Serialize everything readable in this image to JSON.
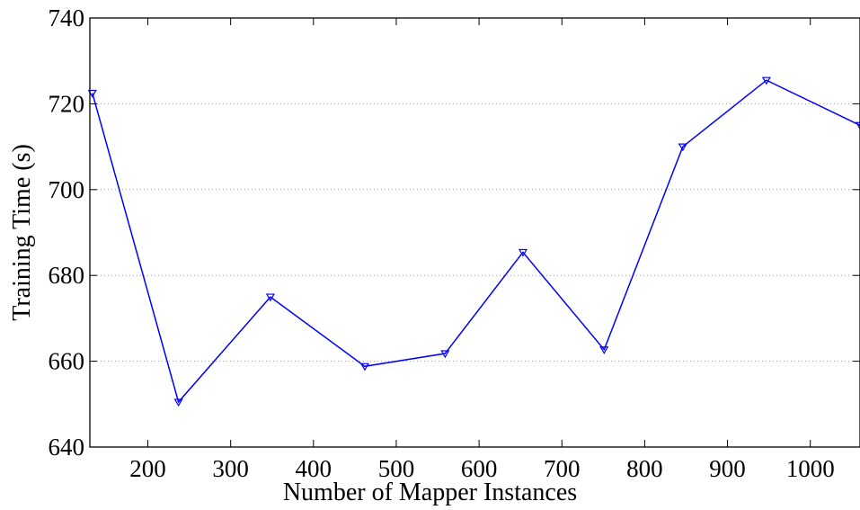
{
  "chart_data": {
    "type": "line",
    "title": "",
    "xlabel": "Number of Mapper Instances",
    "ylabel": "Training Time (s)",
    "xlim": [
      130,
      1060
    ],
    "ylim": [
      640,
      740
    ],
    "x_ticks": [
      200,
      300,
      400,
      500,
      600,
      700,
      800,
      900,
      1000
    ],
    "y_ticks": [
      640,
      660,
      680,
      700,
      720,
      740
    ],
    "grid": "horizontal dotted",
    "series": [
      {
        "color": "#0000ff",
        "marker": "down-triangle",
        "x": [
          133,
          237,
          348,
          462,
          559,
          653,
          751,
          846,
          947,
          1060
        ],
        "y": [
          722.5,
          650.5,
          675,
          658.8,
          661.8,
          685.4,
          662.7,
          710,
          725.5,
          715
        ]
      }
    ]
  }
}
